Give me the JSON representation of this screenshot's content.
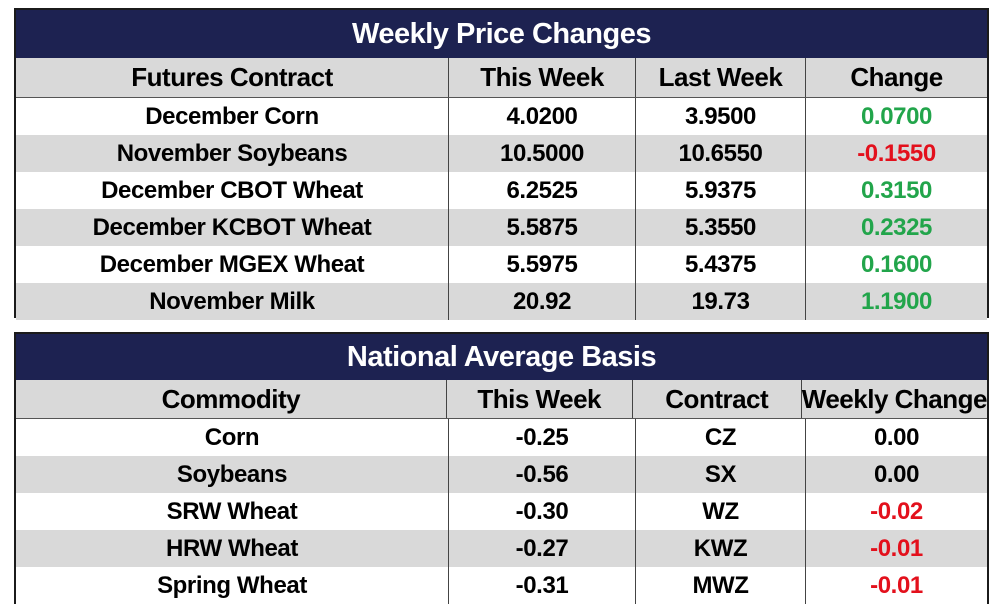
{
  "colors": {
    "title_bg": "#1d2251",
    "header_bg": "#d9d9d9",
    "shade_bg": "#d9d9d9",
    "positive": "#22a54b",
    "negative": "#e3101c"
  },
  "price_table": {
    "title": "Weekly Price Changes",
    "headers": [
      "Futures Contract",
      "This Week",
      "Last Week",
      "Change"
    ],
    "rows": [
      {
        "contract": "December Corn",
        "this_week": "4.0200",
        "last_week": "3.9500",
        "change": "0.0700",
        "change_sign": "pos"
      },
      {
        "contract": "November Soybeans",
        "this_week": "10.5000",
        "last_week": "10.6550",
        "change": "-0.1550",
        "change_sign": "neg"
      },
      {
        "contract": "December CBOT Wheat",
        "this_week": "6.2525",
        "last_week": "5.9375",
        "change": "0.3150",
        "change_sign": "pos"
      },
      {
        "contract": "December KCBOT Wheat",
        "this_week": "5.5875",
        "last_week": "5.3550",
        "change": "0.2325",
        "change_sign": "pos"
      },
      {
        "contract": "December MGEX Wheat",
        "this_week": "5.5975",
        "last_week": "5.4375",
        "change": "0.1600",
        "change_sign": "pos"
      },
      {
        "contract": "November Milk",
        "this_week": "20.92",
        "last_week": "19.73",
        "change": "1.1900",
        "change_sign": "pos"
      }
    ]
  },
  "basis_table": {
    "title": "National Average Basis",
    "headers": [
      "Commodity",
      "This Week",
      "Contract",
      "Weekly Change"
    ],
    "rows": [
      {
        "commodity": "Corn",
        "this_week": "-0.25",
        "contract": "CZ",
        "weekly_change": "0.00",
        "change_sign": "neu"
      },
      {
        "commodity": "Soybeans",
        "this_week": "-0.56",
        "contract": "SX",
        "weekly_change": "0.00",
        "change_sign": "neu"
      },
      {
        "commodity": "SRW Wheat",
        "this_week": "-0.30",
        "contract": "WZ",
        "weekly_change": "-0.02",
        "change_sign": "neg"
      },
      {
        "commodity": "HRW Wheat",
        "this_week": "-0.27",
        "contract": "KWZ",
        "weekly_change": "-0.01",
        "change_sign": "neg"
      },
      {
        "commodity": "Spring Wheat",
        "this_week": "-0.31",
        "contract": "MWZ",
        "weekly_change": "-0.01",
        "change_sign": "neg"
      }
    ]
  }
}
